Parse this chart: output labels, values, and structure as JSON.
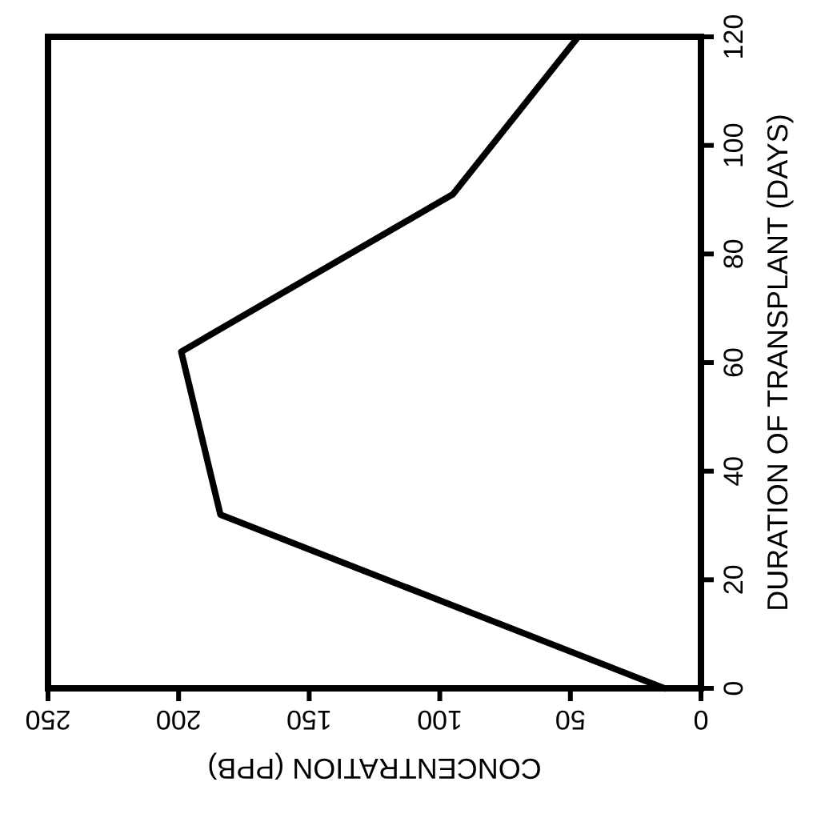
{
  "chart_data": {
    "type": "line",
    "xlabel": "CONCENTRATION (PPB)",
    "y2label": "DURATION OF TRANSPLANT (DAYS)",
    "series": [
      {
        "color": "#000000",
        "axis": "y2",
        "x": [
          14,
          184,
          199,
          95,
          47
        ],
        "values": [
          0,
          32,
          62,
          91,
          120
        ]
      }
    ],
    "xlim": [
      250,
      0
    ],
    "xticks": [
      250,
      200,
      150,
      100,
      50,
      0
    ],
    "y2lim": [
      0,
      120
    ],
    "y2ticks": [
      0,
      20,
      40,
      60,
      80,
      100,
      120
    ],
    "grid": false,
    "marker": "none",
    "line_style": "solid"
  }
}
